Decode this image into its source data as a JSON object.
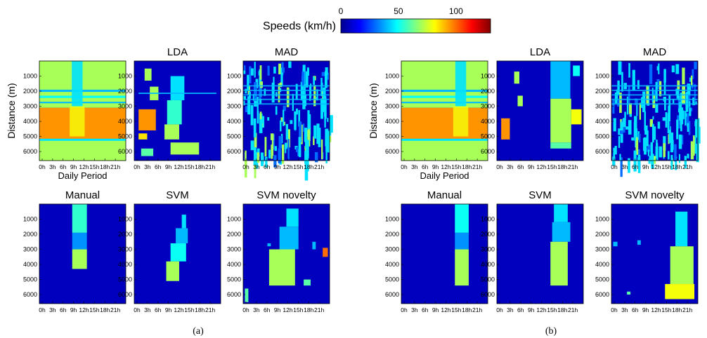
{
  "colorbar": {
    "label": "Speeds (km/h)",
    "ticks": [
      0,
      50,
      100
    ],
    "range": [
      0,
      130
    ],
    "colormap": "jet"
  },
  "axes": {
    "x_ticks": [
      "0h",
      "3h",
      "6h",
      "9h",
      "12h",
      "15h",
      "18h",
      "21h"
    ],
    "y_ticks": [
      "1000",
      "2000",
      "3000",
      "4000",
      "5000",
      "6000"
    ],
    "ylabel": "Distance (m)",
    "xlabel": "Daily Period"
  },
  "chart_data": [
    {
      "id": "a",
      "caption": "(a)",
      "type": "heatmap",
      "panels": [
        {
          "title": "",
          "kind": "raw",
          "congestion": [
            9,
            12
          ],
          "yellow_top": 0.5
        },
        {
          "title": "LDA",
          "kind": "blobs",
          "blobs": [
            {
              "x0": 0.12,
              "x1": 0.2,
              "y0": 500,
              "y1": 1300,
              "v": 70
            },
            {
              "x0": 0.18,
              "x1": 0.28,
              "y0": 1700,
              "y1": 2600,
              "v": 70
            },
            {
              "x0": 0.05,
              "x1": 0.25,
              "y0": 3200,
              "y1": 4600,
              "v": 95
            },
            {
              "x0": 0.05,
              "x1": 0.15,
              "y0": 4800,
              "y1": 5200,
              "v": 85
            },
            {
              "x0": 0.08,
              "x1": 0.22,
              "y0": 5800,
              "y1": 6300,
              "v": 60
            },
            {
              "x0": 0.42,
              "x1": 0.58,
              "y0": 1000,
              "y1": 2600,
              "v": 45
            },
            {
              "x0": 0.38,
              "x1": 0.55,
              "y0": 2600,
              "y1": 4200,
              "v": 55
            },
            {
              "x0": 0.35,
              "x1": 0.52,
              "y0": 4200,
              "y1": 5200,
              "v": 70
            },
            {
              "x0": 0.42,
              "x1": 0.75,
              "y0": 5400,
              "y1": 6200,
              "v": 70
            },
            {
              "x0": 0.05,
              "x1": 0.95,
              "y0": 2100,
              "y1": 2180,
              "v": 40
            }
          ]
        },
        {
          "title": "MAD",
          "kind": "noise",
          "seed": 3
        },
        {
          "title": "Manual",
          "kind": "blobs",
          "blobs": [
            {
              "x0": 0.38,
              "x1": 0.55,
              "y0": 0,
              "y1": 1900,
              "v": 55
            },
            {
              "x0": 0.38,
              "x1": 0.55,
              "y0": 1900,
              "y1": 3000,
              "v": 35
            },
            {
              "x0": 0.38,
              "x1": 0.55,
              "y0": 3000,
              "y1": 4300,
              "v": 70
            }
          ]
        },
        {
          "title": "SVM",
          "kind": "blobs",
          "blobs": [
            {
              "x0": 0.55,
              "x1": 0.6,
              "y0": 700,
              "y1": 1600,
              "v": 45
            },
            {
              "x0": 0.48,
              "x1": 0.62,
              "y0": 1600,
              "y1": 2600,
              "v": 40
            },
            {
              "x0": 0.42,
              "x1": 0.6,
              "y0": 2600,
              "y1": 3800,
              "v": 50
            },
            {
              "x0": 0.37,
              "x1": 0.52,
              "y0": 3800,
              "y1": 5100,
              "v": 70
            }
          ]
        },
        {
          "title": "SVM novelty",
          "kind": "blobs",
          "blobs": [
            {
              "x0": 0.5,
              "x1": 0.64,
              "y0": 300,
              "y1": 1500,
              "v": 45
            },
            {
              "x0": 0.42,
              "x1": 0.64,
              "y0": 1500,
              "y1": 3000,
              "v": 40
            },
            {
              "x0": 0.3,
              "x1": 0.6,
              "y0": 3000,
              "y1": 5400,
              "v": 70
            },
            {
              "x0": 0.92,
              "x1": 0.98,
              "y0": 2900,
              "y1": 3500,
              "v": 100
            },
            {
              "x0": 0.28,
              "x1": 0.32,
              "y0": 2600,
              "y1": 2800,
              "v": 40
            },
            {
              "x0": 0.8,
              "x1": 0.84,
              "y0": 2500,
              "y1": 3000,
              "v": 40
            },
            {
              "x0": 0.02,
              "x1": 0.06,
              "y0": 5600,
              "y1": 6500,
              "v": 60
            },
            {
              "x0": 0.7,
              "x1": 0.78,
              "y0": 5000,
              "y1": 5400,
              "v": 60
            }
          ]
        }
      ]
    },
    {
      "id": "b",
      "caption": "(b)",
      "type": "heatmap",
      "panels": [
        {
          "title": "",
          "kind": "raw",
          "congestion": [
            15,
            18
          ],
          "yellow_top": 0.5
        },
        {
          "title": "LDA",
          "kind": "blobs",
          "blobs": [
            {
              "x0": 0.2,
              "x1": 0.26,
              "y0": 700,
              "y1": 1500,
              "v": 70
            },
            {
              "x0": 0.24,
              "x1": 0.3,
              "y0": 2300,
              "y1": 3000,
              "v": 70
            },
            {
              "x0": 0.05,
              "x1": 0.15,
              "y0": 3800,
              "y1": 5200,
              "v": 95
            },
            {
              "x0": 0.62,
              "x1": 0.85,
              "y0": 0,
              "y1": 2500,
              "v": 40
            },
            {
              "x0": 0.62,
              "x1": 0.86,
              "y0": 2500,
              "y1": 5400,
              "v": 70
            },
            {
              "x0": 0.62,
              "x1": 0.86,
              "y0": 5400,
              "y1": 5800,
              "v": 60
            },
            {
              "x0": 0.86,
              "x1": 0.98,
              "y0": 3200,
              "y1": 4200,
              "v": 80
            },
            {
              "x0": 0.88,
              "x1": 0.96,
              "y0": 300,
              "y1": 1000,
              "v": 50
            }
          ]
        },
        {
          "title": "MAD",
          "kind": "noise",
          "seed": 11
        },
        {
          "title": "Manual",
          "kind": "blobs",
          "blobs": [
            {
              "x0": 0.62,
              "x1": 0.78,
              "y0": 0,
              "y1": 1900,
              "v": 50
            },
            {
              "x0": 0.62,
              "x1": 0.78,
              "y0": 1900,
              "y1": 3000,
              "v": 35
            },
            {
              "x0": 0.62,
              "x1": 0.78,
              "y0": 3000,
              "y1": 5400,
              "v": 70
            }
          ]
        },
        {
          "title": "SVM",
          "kind": "blobs",
          "blobs": [
            {
              "x0": 0.66,
              "x1": 0.82,
              "y0": 0,
              "y1": 1200,
              "v": 45
            },
            {
              "x0": 0.64,
              "x1": 0.85,
              "y0": 1200,
              "y1": 2500,
              "v": 40
            },
            {
              "x0": 0.62,
              "x1": 0.82,
              "y0": 2500,
              "y1": 5400,
              "v": 70
            }
          ]
        },
        {
          "title": "SVM novelty",
          "kind": "blobs",
          "blobs": [
            {
              "x0": 0.74,
              "x1": 0.88,
              "y0": 500,
              "y1": 2800,
              "v": 45
            },
            {
              "x0": 0.68,
              "x1": 0.95,
              "y0": 2800,
              "y1": 5300,
              "v": 70
            },
            {
              "x0": 0.62,
              "x1": 0.96,
              "y0": 5300,
              "y1": 6300,
              "v": 80
            },
            {
              "x0": 0.02,
              "x1": 0.07,
              "y0": 2500,
              "y1": 2800,
              "v": 40
            },
            {
              "x0": 0.3,
              "x1": 0.34,
              "y0": 2400,
              "y1": 2700,
              "v": 40
            },
            {
              "x0": 0.18,
              "x1": 0.22,
              "y0": 5800,
              "y1": 6000,
              "v": 60
            }
          ]
        }
      ]
    }
  ]
}
